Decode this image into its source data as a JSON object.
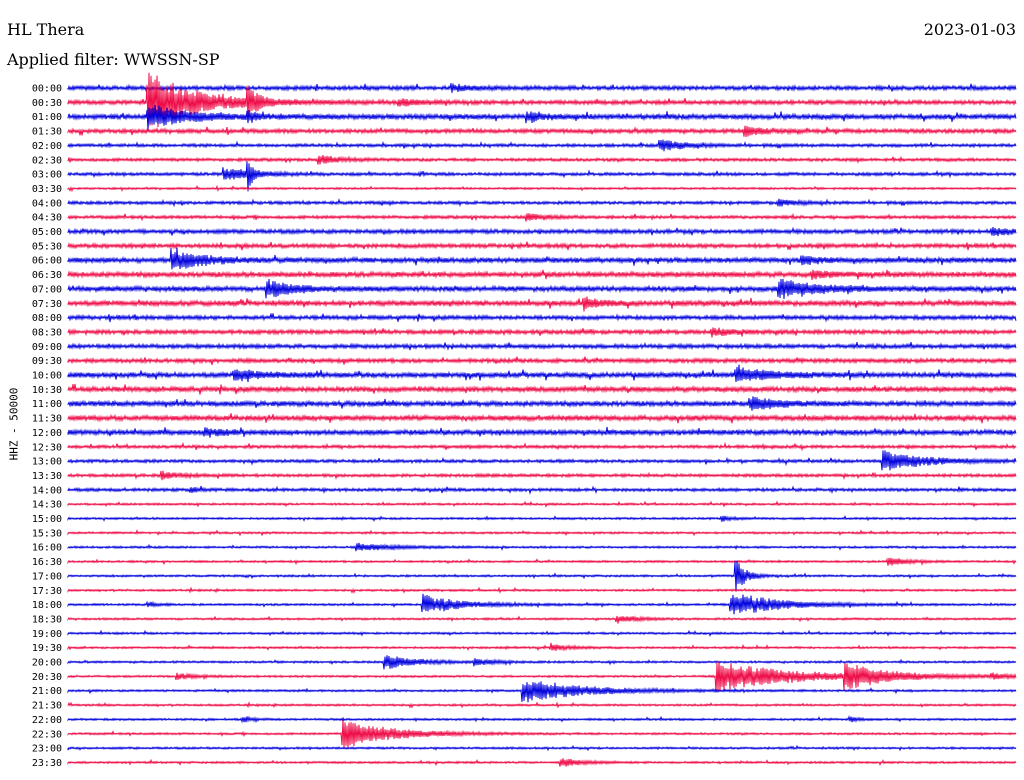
{
  "header": {
    "station": "HL Thera",
    "date": "2023-01-03",
    "filter_label": "Applied filter: WWSSN-SP"
  },
  "axis": {
    "ylabel": "HHZ - 50000"
  },
  "colors": {
    "trace_a": "#0000dd",
    "trace_b": "#ee0a46"
  },
  "chart_data": {
    "type": "line",
    "title": "HL Thera",
    "ylabel": "HHZ - 50000",
    "row_labels": [
      "00:00",
      "00:30",
      "01:00",
      "01:30",
      "02:00",
      "02:30",
      "03:00",
      "03:30",
      "04:00",
      "04:30",
      "05:00",
      "05:30",
      "06:00",
      "06:30",
      "07:00",
      "07:30",
      "08:00",
      "08:30",
      "09:00",
      "09:30",
      "10:00",
      "10:30",
      "11:00",
      "11:30",
      "12:00",
      "12:30",
      "13:00",
      "13:30",
      "14:00",
      "14:30",
      "15:00",
      "15:30",
      "16:00",
      "16:30",
      "17:00",
      "17:30",
      "18:00",
      "18:30",
      "19:00",
      "19:30",
      "20:00",
      "20:30",
      "21:00",
      "21:30",
      "22:00",
      "22:30",
      "23:00",
      "23:30"
    ],
    "row_colors_alternate": [
      "blue",
      "red"
    ],
    "noise_level": [
      4,
      4,
      5,
      4,
      3,
      3,
      3,
      2,
      3,
      3,
      4,
      4,
      5,
      5,
      5,
      5,
      4,
      4,
      4,
      4,
      5,
      5,
      5,
      5,
      5,
      3,
      3,
      3,
      3,
      2,
      2,
      2,
      2,
      2,
      2,
      2,
      2,
      2,
      2,
      2,
      2,
      2,
      2,
      2,
      2,
      2,
      2,
      2
    ],
    "events": [
      {
        "row": 0,
        "x": 0.405,
        "amp": 8,
        "dur": 0.02
      },
      {
        "row": 1,
        "x": 0.085,
        "amp": 60,
        "dur": 0.05
      },
      {
        "row": 1,
        "x": 0.35,
        "amp": 7,
        "dur": 0.02
      },
      {
        "row": 1,
        "x": 0.19,
        "amp": 30,
        "dur": 0.01
      },
      {
        "row": 2,
        "x": 0.085,
        "amp": 25,
        "dur": 0.04
      },
      {
        "row": 2,
        "x": 0.19,
        "amp": 10,
        "dur": 0.01
      },
      {
        "row": 2,
        "x": 0.485,
        "amp": 10,
        "dur": 0.02
      },
      {
        "row": 3,
        "x": 0.715,
        "amp": 10,
        "dur": 0.02
      },
      {
        "row": 4,
        "x": 0.625,
        "amp": 12,
        "dur": 0.025
      },
      {
        "row": 5,
        "x": 0.265,
        "amp": 9,
        "dur": 0.02
      },
      {
        "row": 6,
        "x": 0.165,
        "amp": 12,
        "dur": 0.03
      },
      {
        "row": 6,
        "x": 0.19,
        "amp": 30,
        "dur": 0.005
      },
      {
        "row": 8,
        "x": 0.75,
        "amp": 6,
        "dur": 0.02
      },
      {
        "row": 9,
        "x": 0.485,
        "amp": 8,
        "dur": 0.02
      },
      {
        "row": 10,
        "x": 0.975,
        "amp": 8,
        "dur": 0.025
      },
      {
        "row": 12,
        "x": 0.11,
        "amp": 22,
        "dur": 0.03
      },
      {
        "row": 12,
        "x": 0.775,
        "amp": 8,
        "dur": 0.02
      },
      {
        "row": 13,
        "x": 0.785,
        "amp": 6,
        "dur": 0.03
      },
      {
        "row": 14,
        "x": 0.21,
        "amp": 18,
        "dur": 0.03
      },
      {
        "row": 14,
        "x": 0.75,
        "amp": 20,
        "dur": 0.04
      },
      {
        "row": 15,
        "x": 0.545,
        "amp": 10,
        "dur": 0.02
      },
      {
        "row": 17,
        "x": 0.68,
        "amp": 8,
        "dur": 0.02
      },
      {
        "row": 20,
        "x": 0.175,
        "amp": 10,
        "dur": 0.03
      },
      {
        "row": 20,
        "x": 0.705,
        "amp": 14,
        "dur": 0.04
      },
      {
        "row": 22,
        "x": 0.72,
        "amp": 12,
        "dur": 0.03
      },
      {
        "row": 24,
        "x": 0.145,
        "amp": 7,
        "dur": 0.025
      },
      {
        "row": 26,
        "x": 0.86,
        "amp": 22,
        "dur": 0.04
      },
      {
        "row": 27,
        "x": 0.1,
        "amp": 7,
        "dur": 0.02
      },
      {
        "row": 28,
        "x": 0.13,
        "amp": 5,
        "dur": 0.01
      },
      {
        "row": 30,
        "x": 0.69,
        "amp": 6,
        "dur": 0.01
      },
      {
        "row": 32,
        "x": 0.305,
        "amp": 8,
        "dur": 0.04
      },
      {
        "row": 33,
        "x": 0.865,
        "amp": 8,
        "dur": 0.02
      },
      {
        "row": 34,
        "x": 0.705,
        "amp": 35,
        "dur": 0.01
      },
      {
        "row": 36,
        "x": 0.375,
        "amp": 20,
        "dur": 0.04
      },
      {
        "row": 36,
        "x": 0.7,
        "amp": 25,
        "dur": 0.05
      },
      {
        "row": 36,
        "x": 0.085,
        "amp": 5,
        "dur": 0.01
      },
      {
        "row": 37,
        "x": 0.58,
        "amp": 8,
        "dur": 0.02
      },
      {
        "row": 39,
        "x": 0.51,
        "amp": 6,
        "dur": 0.02
      },
      {
        "row": 40,
        "x": 0.335,
        "amp": 16,
        "dur": 0.03
      },
      {
        "row": 40,
        "x": 0.43,
        "amp": 6,
        "dur": 0.02
      },
      {
        "row": 41,
        "x": 0.115,
        "amp": 6,
        "dur": 0.02
      },
      {
        "row": 41,
        "x": 0.685,
        "amp": 30,
        "dur": 0.08
      },
      {
        "row": 41,
        "x": 0.82,
        "amp": 25,
        "dur": 0.04
      },
      {
        "row": 41,
        "x": 0.975,
        "amp": 5,
        "dur": 0.02
      },
      {
        "row": 42,
        "x": 0.48,
        "amp": 25,
        "dur": 0.06
      },
      {
        "row": 44,
        "x": 0.185,
        "amp": 5,
        "dur": 0.01
      },
      {
        "row": 44,
        "x": 0.825,
        "amp": 5,
        "dur": 0.01
      },
      {
        "row": 45,
        "x": 0.29,
        "amp": 30,
        "dur": 0.05
      },
      {
        "row": 47,
        "x": 0.52,
        "amp": 10,
        "dur": 0.02
      }
    ]
  }
}
